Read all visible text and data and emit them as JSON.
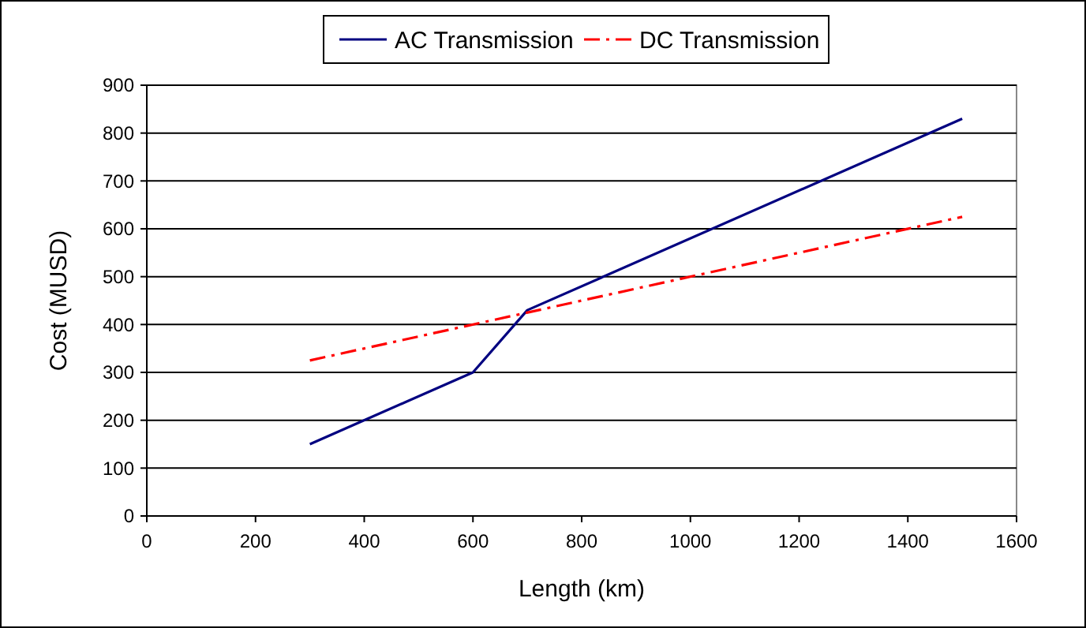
{
  "chart_data": {
    "type": "line",
    "xlabel": "Length (km)",
    "ylabel": "Cost (MUSD)",
    "xlim": [
      0,
      1600
    ],
    "xticks": [
      0,
      200,
      400,
      600,
      800,
      1000,
      1200,
      1400,
      1600
    ],
    "ylim": [
      0,
      900
    ],
    "yticks": [
      0,
      100,
      200,
      300,
      400,
      500,
      600,
      700,
      800,
      900
    ],
    "grid": "y",
    "legend": "top",
    "series": [
      {
        "name": "AC Transmission",
        "color": "#000080",
        "line_style": "solid",
        "x": [
          300,
          600,
          700,
          1500
        ],
        "values": [
          150,
          300,
          430,
          830
        ]
      },
      {
        "name": "DC Transmission",
        "color": "#ff0000",
        "line_style": "dashed",
        "x": [
          300,
          1500
        ],
        "values": [
          325,
          625
        ]
      }
    ]
  }
}
